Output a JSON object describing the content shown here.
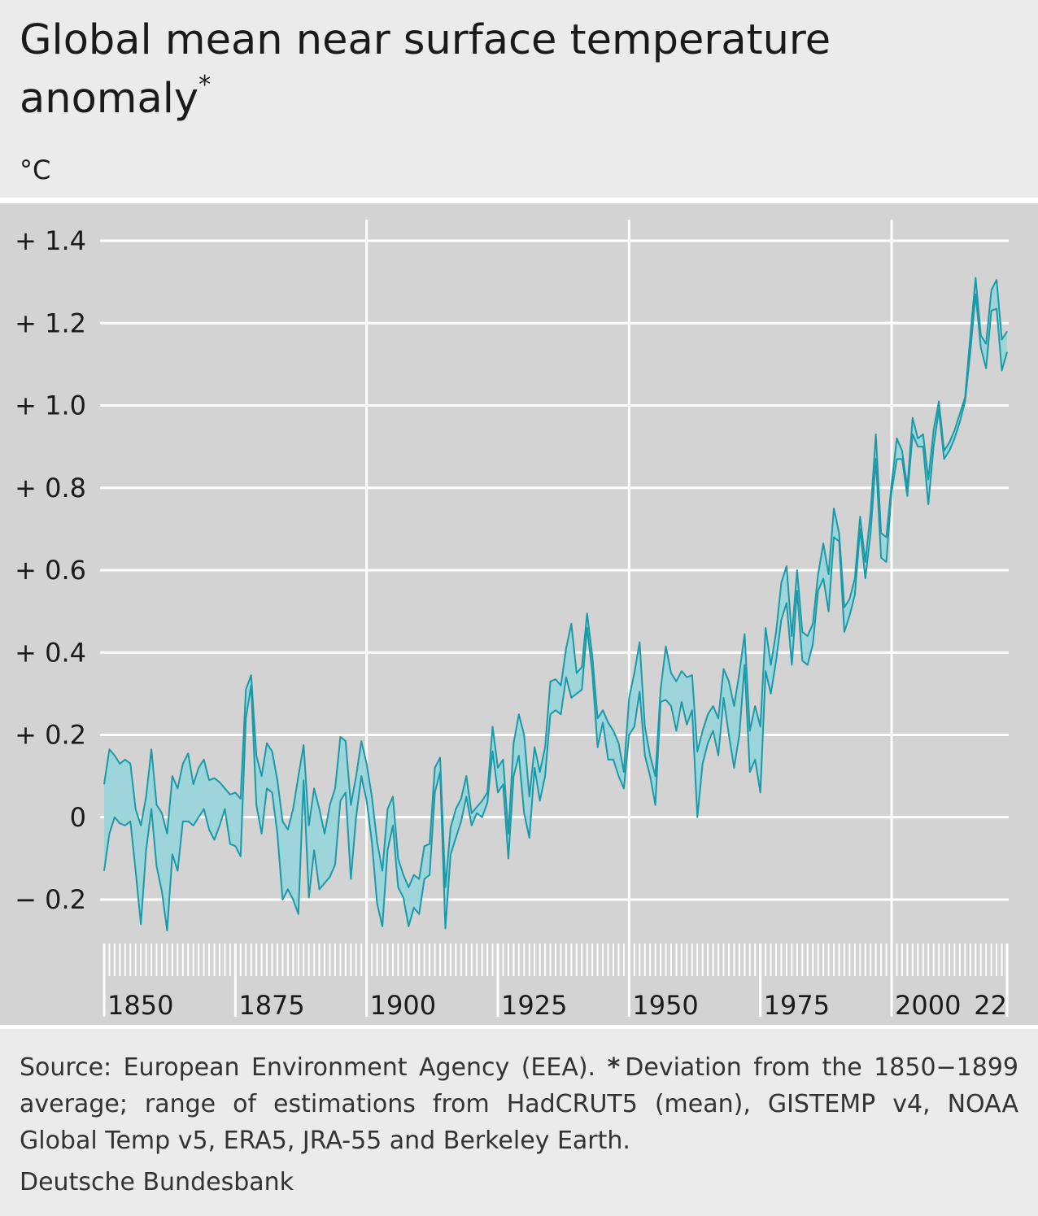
{
  "chart_data": {
    "type": "band",
    "title": "Global mean near surface temperature anomaly",
    "title_marker": "*",
    "unit": "°C",
    "source": "Source: European Environment Agency (EEA).",
    "note_marker": "*",
    "note": "Deviation from the 1850−1899 average; range of estimations from HadCRUT5 (mean), GISTEMP v4, NOAA Global Temp v5, ERA5, JRA-55 and Berkeley Earth.",
    "publisher": "Deutsche Bundesbank",
    "line_color": "#1a9aa8",
    "fill_color": "#9dd5da",
    "grid": true,
    "xlim": [
      1850,
      2022
    ],
    "xticks": [
      1850,
      1875,
      1900,
      1925,
      1950,
      1975,
      2000,
      {
        "value": 2022,
        "label": "22"
      }
    ],
    "xgrid": [
      1900,
      1950,
      2000
    ],
    "ylim": [
      -0.28,
      1.4
    ],
    "yticks": [
      {
        "value": 1.4,
        "label": "+ 1.4"
      },
      {
        "value": 1.2,
        "label": "+ 1.2"
      },
      {
        "value": 1.0,
        "label": "+ 1.0"
      },
      {
        "value": 0.8,
        "label": "+ 0.8"
      },
      {
        "value": 0.6,
        "label": "+ 0.6"
      },
      {
        "value": 0.4,
        "label": "+ 0.4"
      },
      {
        "value": 0.2,
        "label": "+ 0.2"
      },
      0,
      {
        "value": -0.2,
        "label": "− 0.2"
      }
    ],
    "x": [
      1850,
      1851,
      1852,
      1853,
      1854,
      1855,
      1856,
      1857,
      1858,
      1859,
      1860,
      1861,
      1862,
      1863,
      1864,
      1865,
      1866,
      1867,
      1868,
      1869,
      1870,
      1871,
      1872,
      1873,
      1874,
      1875,
      1876,
      1877,
      1878,
      1879,
      1880,
      1881,
      1882,
      1883,
      1884,
      1885,
      1886,
      1887,
      1888,
      1889,
      1890,
      1891,
      1892,
      1893,
      1894,
      1895,
      1896,
      1897,
      1898,
      1899,
      1900,
      1901,
      1902,
      1903,
      1904,
      1905,
      1906,
      1907,
      1908,
      1909,
      1910,
      1911,
      1912,
      1913,
      1914,
      1915,
      1916,
      1917,
      1918,
      1919,
      1920,
      1921,
      1922,
      1923,
      1924,
      1925,
      1926,
      1927,
      1928,
      1929,
      1930,
      1931,
      1932,
      1933,
      1934,
      1935,
      1936,
      1937,
      1938,
      1939,
      1940,
      1941,
      1942,
      1943,
      1944,
      1945,
      1946,
      1947,
      1948,
      1949,
      1950,
      1951,
      1952,
      1953,
      1954,
      1955,
      1956,
      1957,
      1958,
      1959,
      1960,
      1961,
      1962,
      1963,
      1964,
      1965,
      1966,
      1967,
      1968,
      1969,
      1970,
      1971,
      1972,
      1973,
      1974,
      1975,
      1976,
      1977,
      1978,
      1979,
      1980,
      1981,
      1982,
      1983,
      1984,
      1985,
      1986,
      1987,
      1988,
      1989,
      1990,
      1991,
      1992,
      1993,
      1994,
      1995,
      1996,
      1997,
      1998,
      1999,
      2000,
      2001,
      2002,
      2003,
      2004,
      2005,
      2006,
      2007,
      2008,
      2009,
      2010,
      2011,
      2012,
      2013,
      2014,
      2015,
      2016,
      2017,
      2018,
      2019,
      2020,
      2021,
      2022
    ],
    "series": [
      {
        "values": [
          0.08,
          0.165,
          0.15,
          0.13,
          0.14,
          0.13,
          0.02,
          -0.02,
          0.05,
          0.165,
          0.03,
          0.01,
          -0.04,
          0.1,
          0.07,
          0.13,
          0.155,
          0.08,
          0.12,
          0.14,
          0.09,
          0.095,
          0.085,
          0.07,
          0.055,
          0.06,
          0.045,
          0.31,
          0.345,
          0.15,
          0.1,
          0.18,
          0.16,
          0.09,
          -0.01,
          -0.03,
          0.02,
          0.1,
          0.175,
          -0.02,
          0.07,
          0.02,
          -0.04,
          0.03,
          0.07,
          0.195,
          0.185,
          0.03,
          0.1,
          0.185,
          0.13,
          0.05,
          -0.06,
          -0.13,
          0.02,
          0.05,
          -0.1,
          -0.14,
          -0.17,
          -0.14,
          -0.15,
          -0.07,
          -0.065,
          0.12,
          0.145,
          -0.17,
          -0.025,
          0.02,
          0.045,
          0.1,
          0.01,
          0.025,
          0.04,
          0.06,
          0.22,
          0.12,
          0.14,
          -0.04,
          0.18,
          0.25,
          0.2,
          0.05,
          0.17,
          0.11,
          0.17,
          0.33,
          0.335,
          0.32,
          0.41,
          0.47,
          0.35,
          0.365,
          0.495,
          0.39,
          0.24,
          0.26,
          0.23,
          0.21,
          0.18,
          0.11,
          0.29,
          0.35,
          0.425,
          0.22,
          0.15,
          0.1,
          0.31,
          0.415,
          0.35,
          0.33,
          0.355,
          0.34,
          0.345,
          0.16,
          0.21,
          0.25,
          0.27,
          0.24,
          0.36,
          0.33,
          0.27,
          0.35,
          0.445,
          0.21,
          0.27,
          0.22,
          0.46,
          0.37,
          0.45,
          0.57,
          0.61,
          0.44,
          0.6,
          0.45,
          0.44,
          0.47,
          0.59,
          0.665,
          0.59,
          0.75,
          0.69,
          0.51,
          0.53,
          0.58,
          0.73,
          0.62,
          0.74,
          0.93,
          0.69,
          0.68,
          0.81,
          0.92,
          0.89,
          0.8,
          0.97,
          0.92,
          0.93,
          0.82,
          0.94,
          1.01,
          0.89,
          0.91,
          0.94,
          0.98,
          1.02,
          1.17,
          1.31,
          1.17,
          1.15,
          1.28,
          1.305,
          1.16,
          1.18
        ]
      },
      {
        "values": [
          -0.13,
          -0.04,
          0,
          -0.015,
          -0.02,
          -0.01,
          -0.13,
          -0.26,
          -0.08,
          0.02,
          -0.12,
          -0.18,
          -0.275,
          -0.09,
          -0.13,
          -0.01,
          -0.01,
          -0.02,
          0,
          0.02,
          -0.03,
          -0.055,
          -0.02,
          0.02,
          -0.065,
          -0.07,
          -0.095,
          0.24,
          0.32,
          0.03,
          -0.04,
          0.07,
          0.06,
          -0.04,
          -0.2,
          -0.175,
          -0.2,
          -0.235,
          0.09,
          -0.195,
          -0.08,
          -0.175,
          -0.16,
          -0.145,
          -0.115,
          0.04,
          0.06,
          -0.15,
          0,
          0.1,
          0.04,
          -0.06,
          -0.21,
          -0.265,
          -0.08,
          -0.02,
          -0.17,
          -0.195,
          -0.265,
          -0.22,
          -0.235,
          -0.15,
          -0.14,
          0.06,
          0.11,
          -0.27,
          -0.09,
          -0.05,
          -0.01,
          0.05,
          -0.02,
          0.01,
          0,
          0.035,
          0.16,
          0.06,
          0.08,
          -0.1,
          0.1,
          0.15,
          0.01,
          -0.05,
          0.12,
          0.04,
          0.1,
          0.25,
          0.26,
          0.25,
          0.34,
          0.29,
          0.3,
          0.31,
          0.46,
          0.35,
          0.17,
          0.23,
          0.14,
          0.14,
          0.1,
          0.07,
          0.2,
          0.22,
          0.305,
          0.15,
          0.1,
          0.03,
          0.28,
          0.285,
          0.27,
          0.21,
          0.28,
          0.225,
          0.26,
          0,
          0.13,
          0.18,
          0.21,
          0.15,
          0.29,
          0.2,
          0.12,
          0.2,
          0.37,
          0.11,
          0.14,
          0.06,
          0.355,
          0.3,
          0.38,
          0.48,
          0.52,
          0.37,
          0.55,
          0.38,
          0.37,
          0.42,
          0.55,
          0.58,
          0.5,
          0.68,
          0.67,
          0.45,
          0.49,
          0.54,
          0.7,
          0.58,
          0.69,
          0.87,
          0.63,
          0.62,
          0.79,
          0.87,
          0.87,
          0.78,
          0.93,
          0.9,
          0.9,
          0.76,
          0.9,
          0.99,
          0.87,
          0.89,
          0.92,
          0.96,
          1.01,
          1.13,
          1.27,
          1.14,
          1.09,
          1.23,
          1.235,
          1.085,
          1.13
        ]
      }
    ]
  }
}
